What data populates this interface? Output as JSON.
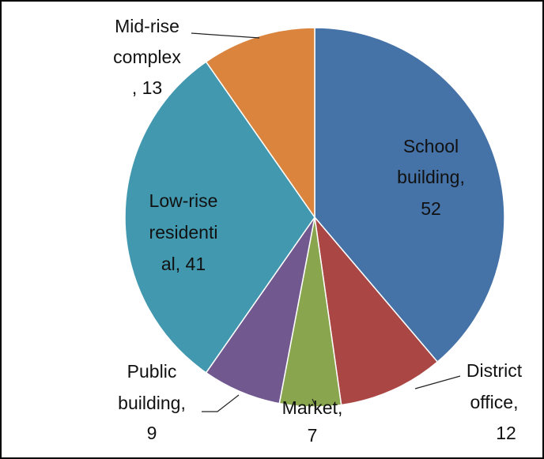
{
  "chart_data": {
    "type": "pie",
    "labels": [
      [
        "School",
        "building,",
        "52"
      ],
      [
        "District",
        "office,",
        "12"
      ],
      [
        "Market,",
        "7"
      ],
      [
        "Public",
        "building,",
        "9"
      ],
      [
        "Low-rise",
        "residenti",
        "al, 41"
      ],
      [
        "Mid-rise",
        "complex",
        ", 13"
      ]
    ],
    "values": [
      52,
      12,
      7,
      9,
      41,
      13
    ],
    "colors": [
      "#4572a7",
      "#aa4643",
      "#89a54e",
      "#71588f",
      "#4198af",
      "#db843d"
    ]
  }
}
